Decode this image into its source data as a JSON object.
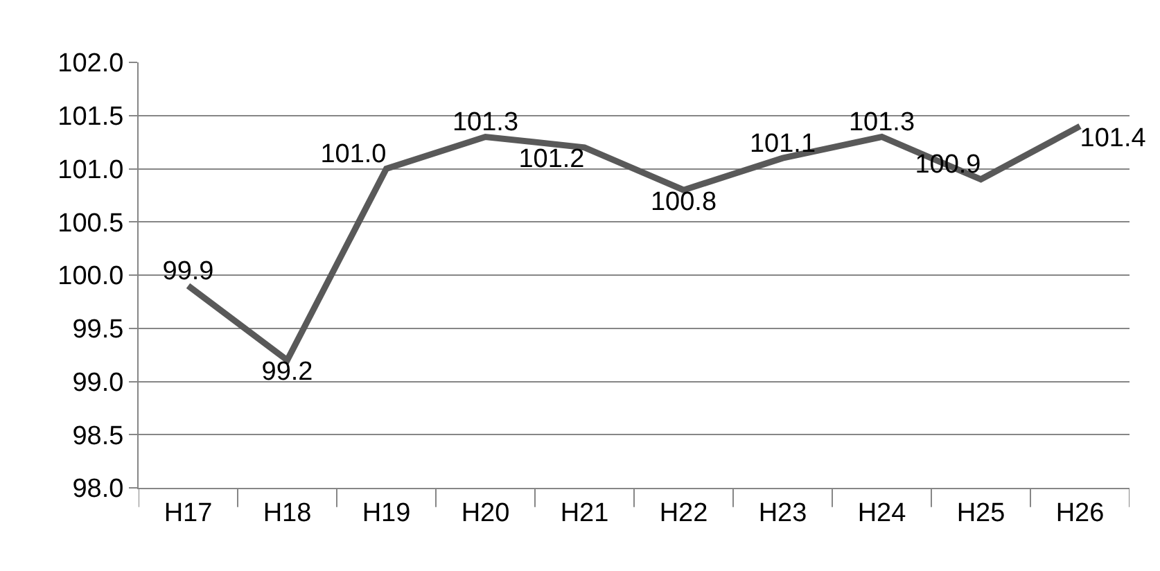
{
  "chart_data": {
    "type": "line",
    "categories": [
      "H17",
      "H18",
      "H19",
      "H20",
      "H21",
      "H22",
      "H23",
      "H24",
      "H25",
      "H26"
    ],
    "series": [
      {
        "color": "#595959",
        "values": [
          99.9,
          99.2,
          101.0,
          101.3,
          101.2,
          100.8,
          101.1,
          101.3,
          100.9,
          101.4
        ],
        "value_labels": [
          "99.9",
          "99.2",
          "101.0",
          "101.3",
          "101.2",
          "100.8",
          "101.1",
          "101.3",
          "100.9",
          "101.4"
        ]
      }
    ],
    "ylim": [
      98.0,
      102.0
    ],
    "yticks": [
      {
        "value": 98,
        "label": "98.0"
      },
      {
        "value": 98.5,
        "label": "98.5"
      },
      {
        "value": 99,
        "label": "99.0"
      },
      {
        "value": 99.5,
        "label": "99.5"
      },
      {
        "value": 100,
        "label": "100.0"
      },
      {
        "value": 100.5,
        "label": "100.5"
      },
      {
        "value": 101,
        "label": "101.0"
      },
      {
        "value": 101.5,
        "label": "101.5"
      },
      {
        "value": 102,
        "label": "102.0"
      }
    ],
    "grid": "y",
    "marker": "none",
    "line_style": "solid"
  }
}
